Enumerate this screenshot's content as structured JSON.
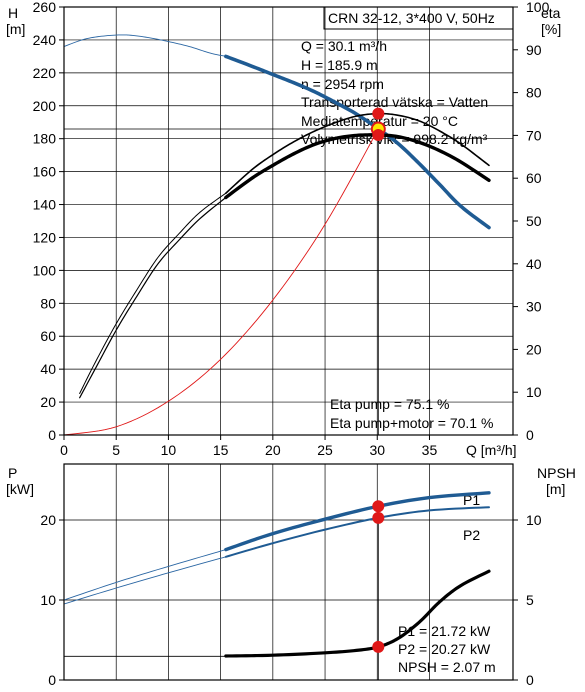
{
  "colors": {
    "blue": "#1f5b93",
    "thin_blue": "#2a66a3",
    "red": "#e01818",
    "black": "#000000",
    "grid": "#000000",
    "marker_yellow": "#ffe600"
  },
  "chart_data": [
    {
      "type": "line",
      "name": "pump-curve",
      "title": "CRN 32-12, 3*400 V, 50Hz",
      "xlabel": "Q [m³/h]",
      "ylabel_left_unit": "H",
      "ylabel_left_dim": "[m]",
      "ylabel_right_unit": "eta",
      "ylabel_right_dim": "[%]",
      "xlim": [
        0,
        43
      ],
      "ylim_left": [
        0,
        260
      ],
      "ylim_right": [
        0,
        100
      ],
      "x_ticks": [
        0,
        5,
        10,
        15,
        20,
        25,
        30,
        35
      ],
      "y_left_ticks": [
        0,
        20,
        40,
        60,
        80,
        100,
        120,
        140,
        160,
        180,
        200,
        220,
        240,
        260
      ],
      "y_right_ticks": [
        0,
        10,
        20,
        30,
        40,
        50,
        60,
        70,
        80,
        90,
        100
      ],
      "info": [
        "Q = 30.1 m³/h",
        "H = 185.9 m",
        "n = 2954 rpm",
        "Transporterad vätska = Vatten",
        "Mediatemperatur = 20 °C",
        "Volymetrisk vikt = 998.2 kg/m³"
      ],
      "eta_info": [
        "Eta pump = 75.1 %",
        "Eta pump+motor = 70.1 %"
      ],
      "duty_point": {
        "x": 30.1,
        "head": 185.9,
        "eta_pump": 75.1,
        "eta_total": 70.1
      },
      "series": [
        {
          "key": "head_thin",
          "axis": "left",
          "style": "thin-blue",
          "x": [
            0,
            2,
            4,
            6,
            8,
            10,
            12,
            14,
            15.5
          ],
          "y": [
            236,
            240.5,
            242.5,
            243,
            241.5,
            239,
            236,
            232,
            230
          ]
        },
        {
          "key": "head",
          "axis": "left",
          "style": "thick-blue",
          "x": [
            15.5,
            18,
            20,
            22,
            24,
            26,
            28,
            30.1,
            32,
            34,
            36,
            38,
            40.7
          ],
          "y": [
            230,
            224,
            219,
            214,
            208.5,
            202,
            195,
            186,
            177,
            165,
            152,
            139,
            126
          ]
        },
        {
          "key": "eta_pump",
          "axis": "right",
          "style": "double-thin-black",
          "x": [
            1.5,
            3,
            5,
            7,
            9,
            11,
            13,
            15.5,
            18,
            20,
            22,
            24,
            26,
            28,
            30.1,
            32,
            34,
            36,
            38,
            40.7
          ],
          "y": [
            9.7,
            17,
            26,
            34,
            41.5,
            47,
            52,
            56.5,
            62,
            65.5,
            68.5,
            71,
            73,
            74.5,
            75.1,
            74.7,
            73.4,
            71,
            68,
            63
          ]
        },
        {
          "key": "eta_total",
          "axis": "right",
          "style": "thick-black",
          "x": [
            1.5,
            3,
            5,
            7,
            9,
            11,
            13,
            15.5,
            18,
            20,
            22,
            24,
            26,
            28,
            30.1,
            32,
            34,
            36,
            38,
            40.7
          ],
          "y": [
            8.7,
            15.5,
            24.5,
            32.5,
            40,
            45.5,
            50.5,
            55.5,
            60,
            63,
            65.7,
            67.9,
            69.3,
            70,
            70.1,
            69.7,
            68.4,
            66.4,
            63.8,
            59.5
          ]
        },
        {
          "key": "system",
          "axis": "left",
          "style": "thin-red",
          "x": [
            0,
            5,
            10,
            15,
            20,
            25,
            30.1
          ],
          "y": [
            0,
            5,
            20.5,
            46,
            82,
            128,
            185.9
          ]
        }
      ]
    },
    {
      "type": "line",
      "name": "power-npsh",
      "ylabel_left_unit": "P",
      "ylabel_left_dim": "[kW]",
      "ylabel_right_unit": "NPSH",
      "ylabel_right_dim": "[m]",
      "xlim": [
        0,
        43
      ],
      "ylim_left": [
        0,
        27
      ],
      "ylim_right": [
        0,
        13.5
      ],
      "y_left_ticks": [
        0,
        10,
        20
      ],
      "y_right_ticks": [
        0,
        5,
        10
      ],
      "info": [
        "P1 = 21.72 kW",
        "P2 = 20.27 kW",
        "NPSH = 2.07 m"
      ],
      "series_labels": [
        "P1",
        "P2"
      ],
      "npsh_ref": 1.48,
      "series": [
        {
          "key": "p1_thin",
          "axis": "left",
          "style": "thin-blue",
          "x": [
            0,
            5,
            10,
            15.5
          ],
          "y": [
            10,
            12.2,
            14.2,
            16.3
          ]
        },
        {
          "key": "p1",
          "axis": "left",
          "style": "thick-blue",
          "x": [
            15.5,
            20,
            25,
            30.1,
            35,
            40.7
          ],
          "y": [
            16.3,
            18.3,
            20.1,
            21.72,
            22.8,
            23.4
          ]
        },
        {
          "key": "p2_thin",
          "axis": "left",
          "style": "thin-blue",
          "x": [
            0,
            5,
            10,
            15.5
          ],
          "y": [
            9.5,
            11.5,
            13.4,
            15.4
          ]
        },
        {
          "key": "p2",
          "axis": "left",
          "style": "medium-blue",
          "x": [
            15.5,
            20,
            25,
            30.1,
            35,
            40.7
          ],
          "y": [
            15.4,
            17.1,
            18.8,
            20.27,
            21.2,
            21.6
          ]
        },
        {
          "key": "npsh",
          "axis": "right",
          "style": "thick-black",
          "x": [
            15.5,
            20,
            25,
            28,
            30.1,
            32,
            34,
            36,
            38,
            40.7
          ],
          "y": [
            1.5,
            1.55,
            1.7,
            1.85,
            2.07,
            2.6,
            3.6,
            4.9,
            5.9,
            6.8
          ]
        }
      ],
      "points": [
        {
          "axis": "left",
          "x": 30.1,
          "y": 21.72
        },
        {
          "axis": "left",
          "x": 30.1,
          "y": 20.27
        },
        {
          "axis": "right",
          "x": 30.1,
          "y": 2.07
        }
      ]
    }
  ]
}
